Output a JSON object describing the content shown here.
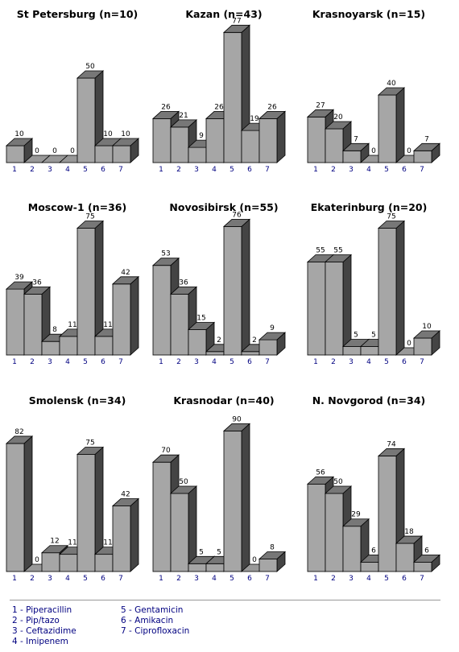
{
  "chart_data": [
    {
      "type": "bar",
      "title": "St Petersburg (n=10)",
      "categories": [
        "1",
        "2",
        "3",
        "4",
        "5",
        "6",
        "7"
      ],
      "values": [
        10,
        0,
        0,
        0,
        50,
        10,
        10
      ]
    },
    {
      "type": "bar",
      "title": "Kazan (n=43)",
      "categories": [
        "1",
        "2",
        "3",
        "4",
        "5",
        "6",
        "7"
      ],
      "values": [
        26,
        21,
        9,
        26,
        77,
        19,
        26
      ]
    },
    {
      "type": "bar",
      "title": "Krasnoyarsk (n=15)",
      "categories": [
        "1",
        "2",
        "3",
        "4",
        "5",
        "6",
        "7"
      ],
      "values": [
        27,
        20,
        7,
        0,
        40,
        0,
        7
      ]
    },
    {
      "type": "bar",
      "title": "Moscow-1 (n=36)",
      "categories": [
        "1",
        "2",
        "3",
        "4",
        "5",
        "6",
        "7"
      ],
      "values": [
        39,
        36,
        8,
        11,
        75,
        11,
        42
      ]
    },
    {
      "type": "bar",
      "title": "Novosibirsk (n=55)",
      "categories": [
        "1",
        "2",
        "3",
        "4",
        "5",
        "6",
        "7"
      ],
      "values": [
        53,
        36,
        15,
        2,
        76,
        2,
        9
      ]
    },
    {
      "type": "bar",
      "title": "Ekaterinburg (n=20)",
      "categories": [
        "1",
        "2",
        "3",
        "4",
        "5",
        "6",
        "7"
      ],
      "values": [
        55,
        55,
        5,
        5,
        75,
        0,
        10
      ]
    },
    {
      "type": "bar",
      "title": "Smolensk (n=34)",
      "categories": [
        "1",
        "2",
        "3",
        "4",
        "5",
        "6",
        "7"
      ],
      "values": [
        82,
        0,
        12,
        11,
        75,
        11,
        42
      ]
    },
    {
      "type": "bar",
      "title": "Krasnodar (n=40)",
      "categories": [
        "1",
        "2",
        "3",
        "4",
        "5",
        "6",
        "7"
      ],
      "values": [
        70,
        50,
        5,
        5,
        90,
        0,
        8
      ]
    },
    {
      "type": "bar",
      "title": "N. Novgorod (n=34)",
      "categories": [
        "1",
        "2",
        "3",
        "4",
        "5",
        "6",
        "7"
      ],
      "values": [
        56,
        50,
        29,
        6,
        74,
        18,
        6
      ]
    }
  ],
  "legend": [
    "1 - Piperacillin",
    "2 - Pip/tazo",
    "3 - Ceftazidime",
    "4 - Imipenem",
    "5 - Gentamicin",
    "6 - Amikacin",
    "7 - Ciprofloxacin"
  ],
  "colors": {
    "front": "#a6a6a6",
    "top": "#777777",
    "side": "#444444",
    "floor": "#d0d0d0",
    "stroke": "#000000"
  }
}
